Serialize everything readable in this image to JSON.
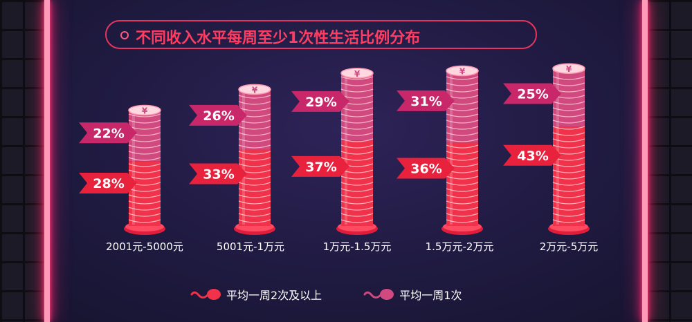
{
  "title": "不同收入水平每周至少1次性生活比例分布",
  "colors": {
    "series_twice": "#f0334a",
    "series_once": "#d04a80",
    "label_twice": "#e8213d",
    "label_once": "#c8286a",
    "coin_symbol_color": "#ffffff"
  },
  "coin_symbol": "¥",
  "legend": {
    "twice_label": "平均一周2次及以上",
    "once_label": "平均一周1次"
  },
  "chart_data": {
    "type": "bar",
    "stacked": true,
    "title": "不同收入水平每周至少1次性生活比例分布",
    "categories": [
      "2001元-5000元",
      "5001元-1万元",
      "1万元-1.5万元",
      "1.5万元-2万元",
      "2万元-5万元"
    ],
    "series": [
      {
        "name": "平均一周2次及以上",
        "values": [
          28,
          33,
          37,
          36,
          43
        ],
        "labels": [
          "28%",
          "33%",
          "37%",
          "36%",
          "43%"
        ]
      },
      {
        "name": "平均一周1次",
        "values": [
          22,
          26,
          29,
          31,
          25
        ],
        "labels": [
          "22%",
          "26%",
          "29%",
          "31%",
          "25%"
        ]
      }
    ],
    "ylim": [
      0,
      70
    ],
    "unit": "%",
    "grid": false,
    "legend_position": "bottom"
  }
}
